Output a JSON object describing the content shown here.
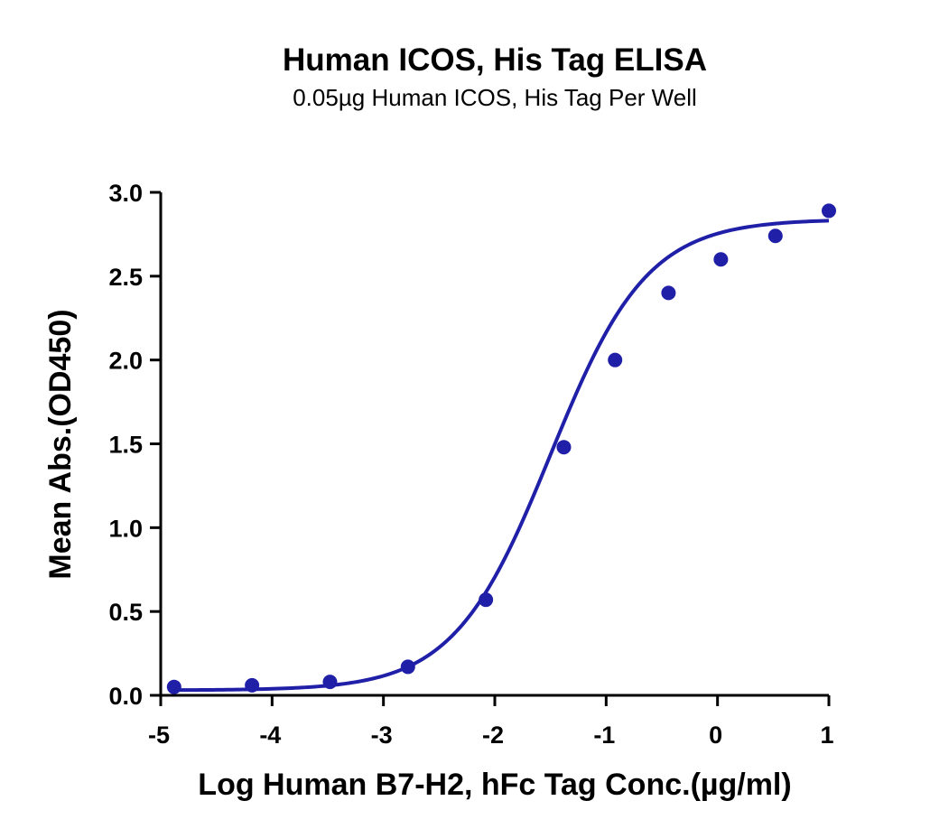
{
  "chart_data": {
    "type": "scatter",
    "title": "Human ICOS, His Tag ELISA",
    "subtitle": "0.05µg Human ICOS, His Tag Per Well",
    "xlabel": "Log Human B7-H2, hFc Tag Conc.(µg/ml)",
    "ylabel": "Mean Abs.(OD450)",
    "xlim": [
      -5,
      1
    ],
    "ylim": [
      0,
      3
    ],
    "x_ticks": [
      "-5",
      "-4",
      "-3",
      "-2",
      "-1",
      "0",
      "1"
    ],
    "y_ticks": [
      "0.0",
      "0.5",
      "1.0",
      "1.5",
      "2.0",
      "2.5",
      "3.0"
    ],
    "grid": false,
    "color": "#1f1fa8",
    "points": {
      "x": [
        -4.88,
        -4.18,
        -3.48,
        -2.78,
        -2.08,
        -1.38,
        -0.92,
        -0.44,
        0.03,
        0.52,
        1.0
      ],
      "y": [
        0.05,
        0.06,
        0.08,
        0.17,
        0.57,
        1.48,
        2.0,
        2.4,
        2.6,
        2.74,
        2.89
      ]
    },
    "fit_curve": {
      "model": "4PL",
      "bottom": 0.03,
      "top": 2.84,
      "log_ec50": -1.5,
      "hill_slope": 1.0
    }
  }
}
